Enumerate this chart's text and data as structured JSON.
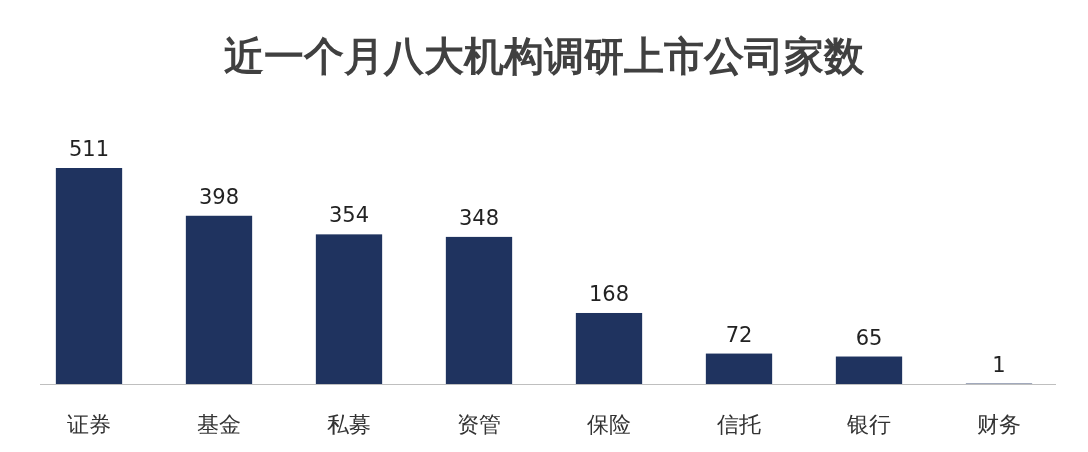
{
  "chart_data": {
    "type": "bar",
    "title": "近一个月八大机构调研上市公司家数",
    "categories": [
      "证券",
      "基金",
      "私募",
      "资管",
      "保险",
      "信托",
      "银行",
      "财务"
    ],
    "values": [
      511,
      398,
      354,
      348,
      168,
      72,
      65,
      1
    ],
    "color": "#1f335f",
    "data_labels": true
  }
}
